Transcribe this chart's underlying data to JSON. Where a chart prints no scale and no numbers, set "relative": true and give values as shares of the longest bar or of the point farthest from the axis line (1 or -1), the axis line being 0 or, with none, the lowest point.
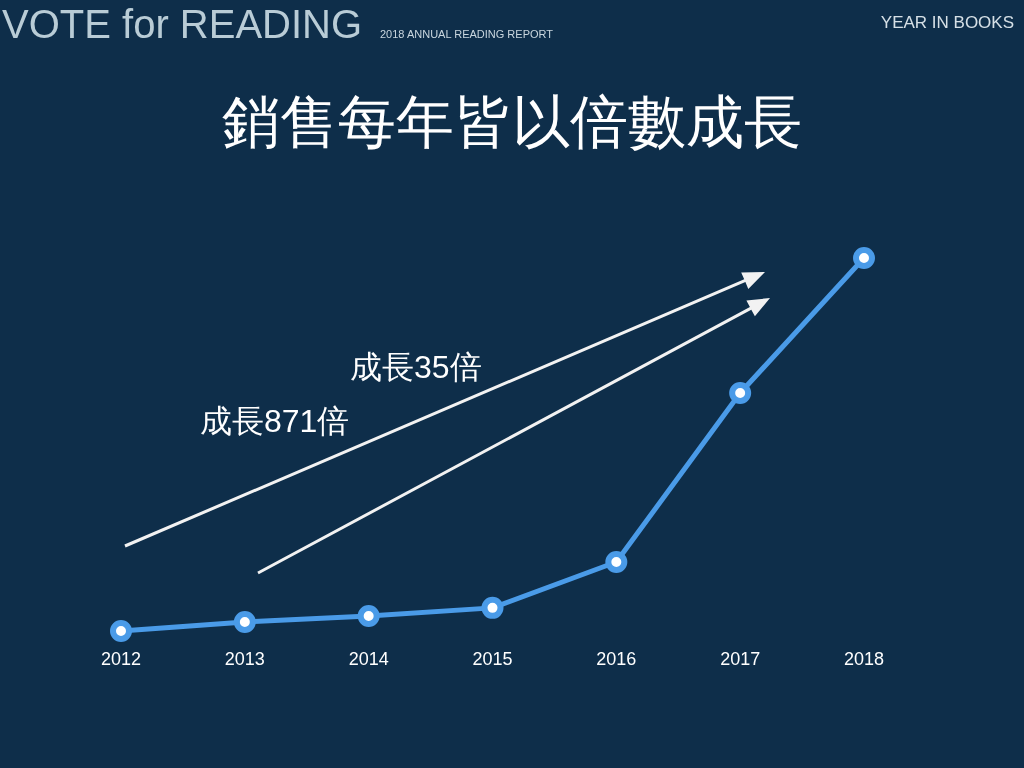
{
  "chart_data": {
    "type": "line",
    "title": "銷售每年皆以倍數成長",
    "categories": [
      "2012",
      "2013",
      "2014",
      "2015",
      "2016",
      "2017",
      "2018"
    ],
    "series": [
      {
        "color": "#4a9be8",
        "values": [
          0,
          0.024,
          0.04,
          0.062,
          0.185,
          0.638,
          1
        ]
      }
    ],
    "relative": true,
    "marker": "circle",
    "line_style": "solid",
    "annotations": [
      "VOTE for READING",
      "2018 ANNUAL READING REPORT",
      "YEAR IN BOOKS",
      "成長35倍",
      "成長871倍"
    ]
  }
}
